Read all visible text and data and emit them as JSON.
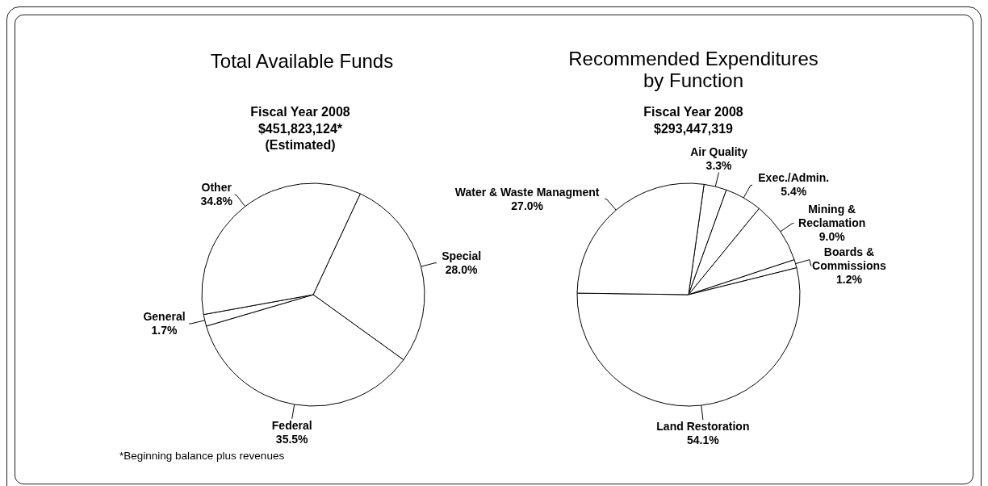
{
  "chart_data": [
    {
      "type": "pie",
      "title": "Total Available Funds",
      "subtitle": "Fiscal Year 2008\n$451,823,124*\n(Estimated)",
      "categories": [
        "Special",
        "Federal",
        "General",
        "Other"
      ],
      "values": [
        28.0,
        35.5,
        1.7,
        34.8
      ],
      "colors": [
        "#ffffff",
        "#ffffff",
        "#ffffff",
        "#ffffff"
      ],
      "value_labels": [
        "28.0%",
        "35.5%",
        "1.7%",
        "34.8%"
      ],
      "annotations": [
        "*Beginning balance plus revenues"
      ]
    },
    {
      "type": "pie",
      "title": "Recommended Expenditures\nby Function",
      "subtitle": "Fiscal Year 2008\n$293,447,319",
      "categories": [
        "Air Quality",
        "Exec./Admin.",
        "Mining & Reclamation",
        "Boards & Commissions",
        "Land Restoration",
        "Water & Waste Managment"
      ],
      "values": [
        3.3,
        5.4,
        9.0,
        1.2,
        54.1,
        27.0
      ],
      "colors": [
        "#ffffff",
        "#ffffff",
        "#ffffff",
        "#ffffff",
        "#ffffff",
        "#ffffff"
      ],
      "value_labels": [
        "3.3%",
        "5.4%",
        "9.0%",
        "1.2%",
        "54.1%",
        "27.0%"
      ]
    }
  ]
}
